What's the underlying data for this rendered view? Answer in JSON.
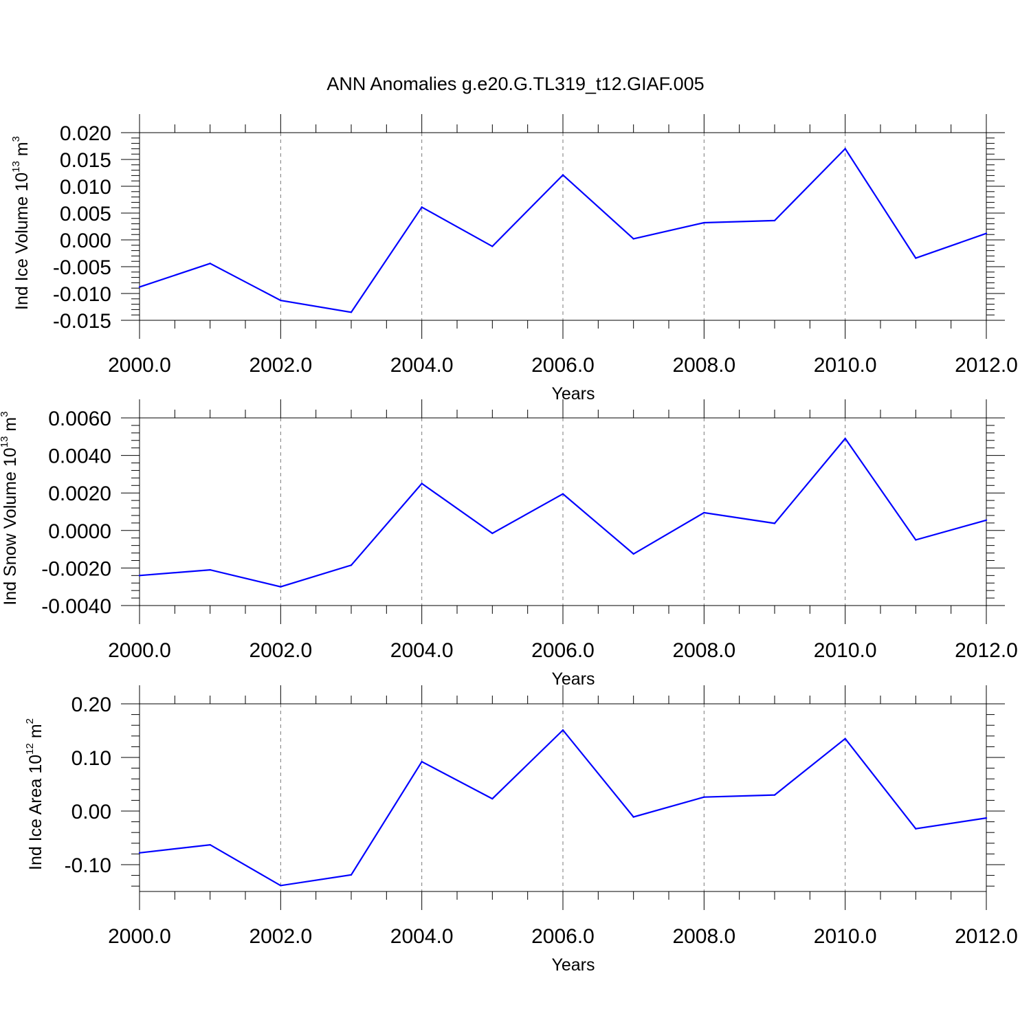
{
  "title": "ANN Anomalies g.e20.G.TL319_t12.GIAF.005",
  "colors": {
    "series": "#0000ff",
    "grid": "#777777",
    "axis": "#000000"
  },
  "chart_data": [
    {
      "type": "line",
      "ylabel": {
        "text": "Ind Ice Volume 10",
        "sup": "13",
        "unit": " m",
        "unit_sup": "3"
      },
      "xlabel": "Years",
      "xlim": [
        2000,
        2012
      ],
      "ylim": [
        -0.015,
        0.02
      ],
      "x_ticks": [
        2000,
        2002,
        2004,
        2006,
        2008,
        2010,
        2012
      ],
      "x_tick_labels": [
        "2000.0",
        "2002.0",
        "2004.0",
        "2006.0",
        "2008.0",
        "2010.0",
        "2012.0"
      ],
      "y_ticks": [
        -0.015,
        -0.01,
        -0.005,
        0.0,
        0.005,
        0.01,
        0.015,
        0.02
      ],
      "y_tick_labels": [
        "-0.015",
        "-0.010",
        "-0.005",
        "0.000",
        "0.005",
        "0.010",
        "0.015",
        "0.020"
      ],
      "grid": "x-dashed",
      "x": [
        2000,
        2001,
        2002,
        2003,
        2004,
        2005,
        2006,
        2007,
        2008,
        2009,
        2010,
        2011,
        2012
      ],
      "values": [
        -0.0088,
        -0.0044,
        -0.0113,
        -0.0135,
        0.0061,
        -0.0012,
        0.0121,
        0.0002,
        0.0032,
        0.0036,
        0.017,
        -0.0034,
        0.0012
      ]
    },
    {
      "type": "line",
      "ylabel": {
        "text": "Ind Snow Volume 10",
        "sup": "13",
        "unit": " m",
        "unit_sup": "3"
      },
      "xlabel": "Years",
      "xlim": [
        2000,
        2012
      ],
      "ylim": [
        -0.004,
        0.006
      ],
      "x_ticks": [
        2000,
        2002,
        2004,
        2006,
        2008,
        2010,
        2012
      ],
      "x_tick_labels": [
        "2000.0",
        "2002.0",
        "2004.0",
        "2006.0",
        "2008.0",
        "2010.0",
        "2012.0"
      ],
      "y_ticks": [
        -0.004,
        -0.002,
        0.0,
        0.002,
        0.004,
        0.006
      ],
      "y_tick_labels": [
        "-0.0040",
        "-0.0020",
        "0.0000",
        "0.0020",
        "0.0040",
        "0.0060"
      ],
      "grid": "x-dashed",
      "x": [
        2000,
        2001,
        2002,
        2003,
        2004,
        2005,
        2006,
        2007,
        2008,
        2009,
        2010,
        2011,
        2012
      ],
      "values": [
        -0.0024,
        -0.0021,
        -0.003,
        -0.00185,
        0.0025,
        -0.00015,
        0.00195,
        -0.00125,
        0.00095,
        0.00038,
        0.0049,
        -0.0005,
        0.00055
      ]
    },
    {
      "type": "line",
      "ylabel": {
        "text": "Ind Ice Area 10",
        "sup": "12",
        "unit": " m",
        "unit_sup": "2"
      },
      "xlabel": "Years",
      "xlim": [
        2000,
        2012
      ],
      "ylim": [
        -0.15,
        0.2
      ],
      "x_ticks": [
        2000,
        2002,
        2004,
        2006,
        2008,
        2010,
        2012
      ],
      "x_tick_labels": [
        "2000.0",
        "2002.0",
        "2004.0",
        "2006.0",
        "2008.0",
        "2010.0",
        "2012.0"
      ],
      "y_ticks": [
        -0.1,
        0.0,
        0.1,
        0.2
      ],
      "y_tick_labels": [
        "-0.10",
        "0.00",
        "0.10",
        "0.20"
      ],
      "grid": "x-dashed",
      "x": [
        2000,
        2001,
        2002,
        2003,
        2004,
        2005,
        2006,
        2007,
        2008,
        2009,
        2010,
        2011,
        2012
      ],
      "values": [
        -0.078,
        -0.063,
        -0.139,
        -0.119,
        0.092,
        0.023,
        0.151,
        -0.011,
        0.026,
        0.03,
        0.135,
        -0.033,
        -0.013
      ]
    }
  ]
}
